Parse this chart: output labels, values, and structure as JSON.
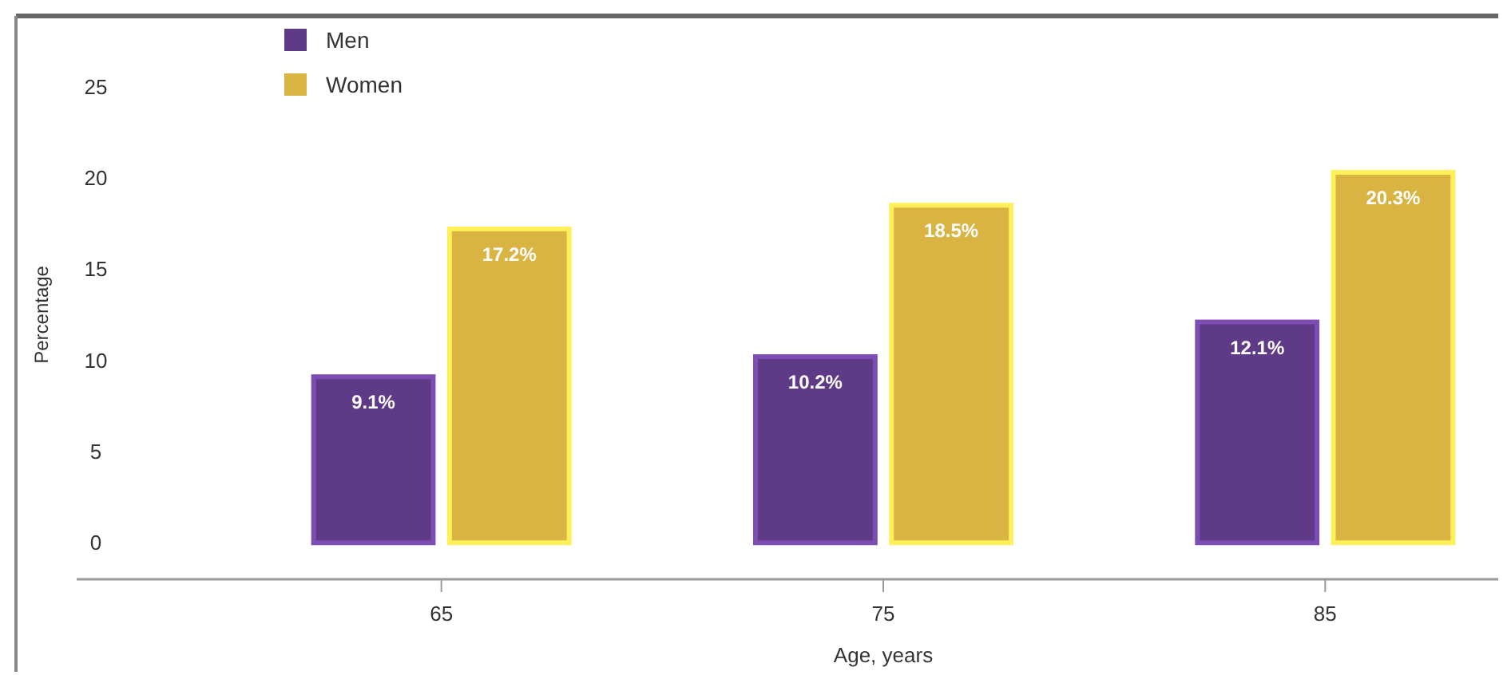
{
  "chart_data": {
    "type": "bar",
    "xlabel": "Age, years",
    "ylabel": "Percentage",
    "categories": [
      "65",
      "75",
      "85"
    ],
    "series": [
      {
        "name": "Men",
        "color": "#5e3a87",
        "values": [
          9.1,
          10.2,
          12.1
        ],
        "value_labels": [
          "9.1%",
          "10.2%",
          "12.1%"
        ]
      },
      {
        "name": "Women",
        "color": "#d9b443",
        "values": [
          17.2,
          18.5,
          20.3
        ],
        "value_labels": [
          "17.2%",
          "18.5%",
          "20.3%"
        ]
      }
    ],
    "ylim": [
      -2,
      28
    ],
    "yticks": [
      0,
      5,
      10,
      15,
      20,
      25
    ],
    "grid": false,
    "legend": "top left"
  }
}
